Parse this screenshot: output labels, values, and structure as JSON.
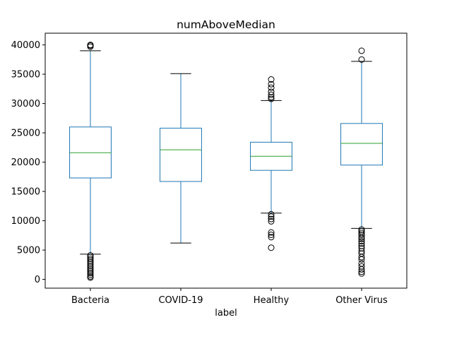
{
  "chart_data": {
    "type": "box",
    "title": "numAboveMedian",
    "xlabel": "label",
    "ylabel": "",
    "ylim": [
      -1500,
      42000
    ],
    "yticks": [
      0,
      5000,
      10000,
      15000,
      20000,
      25000,
      30000,
      35000,
      40000
    ],
    "tick_labels": [
      "0",
      "5000",
      "10000",
      "15000",
      "20000",
      "25000",
      "30000",
      "35000",
      "40000"
    ],
    "grid": false,
    "colors": {
      "box": "#1f77b4",
      "median": "#2ca02c",
      "whisker_cap": "#000000",
      "flier": "#000000"
    },
    "categories": [
      "Bacteria",
      "COVID-19",
      "Healthy",
      "Other Virus"
    ],
    "boxes": [
      {
        "name": "Bacteria",
        "whisker_low": 4300,
        "q1": 17300,
        "median": 21600,
        "q3": 26000,
        "whisker_high": 39000,
        "outliers": [
          39700,
          39900,
          40000,
          4100,
          3800,
          3500,
          3200,
          2900,
          2600,
          2300,
          2000,
          1700,
          1400,
          1100,
          800,
          500,
          300
        ]
      },
      {
        "name": "COVID-19",
        "whisker_low": 6200,
        "q1": 16700,
        "median": 22100,
        "q3": 25800,
        "whisker_high": 35100,
        "outliers": []
      },
      {
        "name": "Healthy",
        "whisker_low": 11300,
        "q1": 18600,
        "median": 21000,
        "q3": 23400,
        "whisker_high": 30500,
        "outliers": [
          30800,
          31100,
          31500,
          32000,
          32700,
          33300,
          34100,
          11100,
          10700,
          10300,
          9900,
          8000,
          7600,
          7200,
          5400
        ]
      },
      {
        "name": "Other Virus",
        "whisker_low": 8700,
        "q1": 19500,
        "median": 23200,
        "q3": 26600,
        "whisker_high": 37200,
        "outliers": [
          37500,
          39000,
          8500,
          8200,
          7900,
          7600,
          7200,
          6900,
          6500,
          6100,
          5700,
          5300,
          4800,
          4400,
          3800,
          3400,
          2700,
          2200,
          1700,
          1300,
          1000
        ]
      }
    ]
  }
}
